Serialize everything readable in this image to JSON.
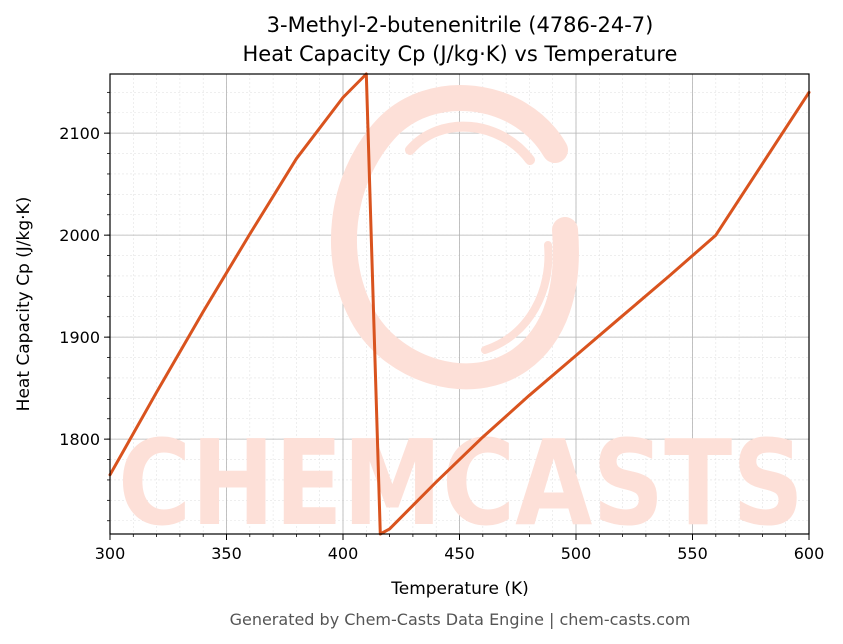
{
  "chart_data": {
    "type": "line",
    "title": "3-Methyl-2-butenenitrile (4786-24-7)",
    "subtitle": "Heat Capacity Cp (J/kg·K) vs Temperature",
    "xlabel": "Temperature (K)",
    "ylabel": "Heat Capacity Cp (J/kg·K)",
    "xlim": [
      300,
      600
    ],
    "ylim": [
      1707,
      2158
    ],
    "x_ticks": [
      300,
      350,
      400,
      450,
      500,
      550,
      600
    ],
    "y_ticks": [
      1800,
      1900,
      2000,
      2100
    ],
    "grid": true,
    "legend": "none",
    "series": [
      {
        "color": "#d9531e",
        "x": [
          300,
          320,
          340,
          360,
          380,
          400,
          410,
          416,
          420,
          440,
          460,
          480,
          500,
          520,
          540,
          560,
          580,
          600
        ],
        "y": [
          1765,
          1846,
          1925,
          2001,
          2075,
          2135,
          2158,
          1707,
          1712,
          1758,
          1802,
          1843,
          1882,
          1921,
          1960,
          2000,
          2070,
          2140
        ]
      }
    ]
  },
  "watermark": {
    "text": "CHEMCASTS"
  },
  "footer": "Generated by Chem-Casts Data Engine | chem-casts.com"
}
